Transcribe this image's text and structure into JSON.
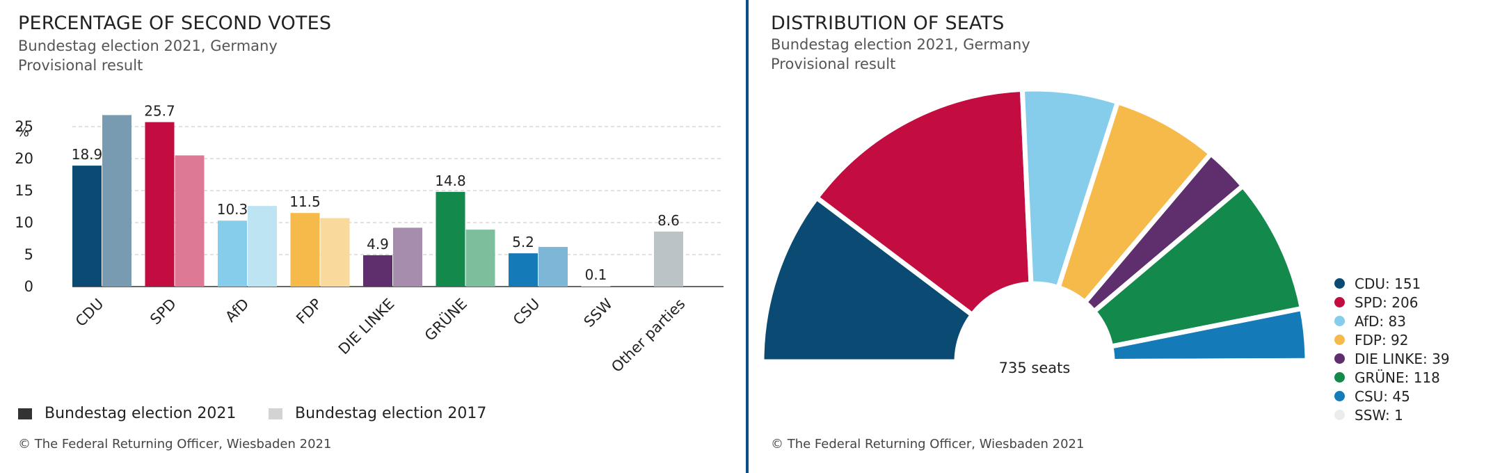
{
  "left": {
    "title": "PERCENTAGE OF SECOND VOTES",
    "subtitle1": "Bundestag election 2021, Germany",
    "subtitle2": "Provisional result",
    "legend_2021": "Bundestag election 2021",
    "legend_2017": "Bundestag election 2017",
    "footer": "© The Federal Returning Officer, Wiesbaden 2021"
  },
  "right": {
    "title": "DISTRIBUTION OF SEATS",
    "subtitle1": "Bundestag election 2021, Germany",
    "subtitle2": "Provisional result",
    "total_label": "735 seats",
    "footer": "© The Federal Returning Officer, Wiesbaden 2021"
  },
  "colors": {
    "CDU": "#0a4a73",
    "SPD": "#c30c3f",
    "AfD": "#85cdea",
    "FDP": "#f6ba4b",
    "DIE LINKE": "#5e2f6c",
    "GRÜNE": "#138a4c",
    "CSU": "#157ab8",
    "SSW": "#ececec",
    "Other parties": "#bcc3c7",
    "legend_2021": "#333333",
    "legend_2017": "#d3d3d3"
  },
  "chart_data": [
    {
      "type": "bar",
      "title": "PERCENTAGE OF SECOND VOTES",
      "ylabel": "%",
      "ylim": [
        0,
        25
      ],
      "yticks": [
        0,
        5,
        10,
        15,
        20,
        25
      ],
      "grid": true,
      "categories": [
        "CDU",
        "SPD",
        "AfD",
        "FDP",
        "DIE LINKE",
        "GRÜNE",
        "CSU",
        "SSW",
        "Other parties"
      ],
      "series": [
        {
          "name": "Bundestag election 2021",
          "values": [
            18.9,
            25.7,
            10.3,
            11.5,
            4.9,
            14.8,
            5.2,
            0.1,
            8.6
          ]
        },
        {
          "name": "Bundestag election 2017",
          "values": [
            26.8,
            20.5,
            12.6,
            10.7,
            9.2,
            8.9,
            6.2,
            null,
            null
          ]
        }
      ],
      "data_labels": [
        "18.9",
        "25.7",
        "10.3",
        "11.5",
        "4.9",
        "14.8",
        "5.2",
        "0.1",
        "8.6"
      ],
      "legend_position": "bottom-left"
    },
    {
      "type": "pie",
      "variant": "semicircle",
      "title": "DISTRIBUTION OF SEATS",
      "categories": [
        "CDU",
        "SPD",
        "AfD",
        "FDP",
        "DIE LINKE",
        "GRÜNE",
        "CSU",
        "SSW"
      ],
      "values": [
        151,
        206,
        83,
        92,
        39,
        118,
        45,
        1
      ],
      "legend": [
        "CDU: 151",
        "SPD: 206",
        "AfD: 83",
        "FDP: 92",
        "DIE LINKE: 39",
        "GRÜNE: 118",
        "CSU: 45",
        "SSW: 1"
      ],
      "total_label": "735 seats",
      "legend_position": "right"
    }
  ]
}
